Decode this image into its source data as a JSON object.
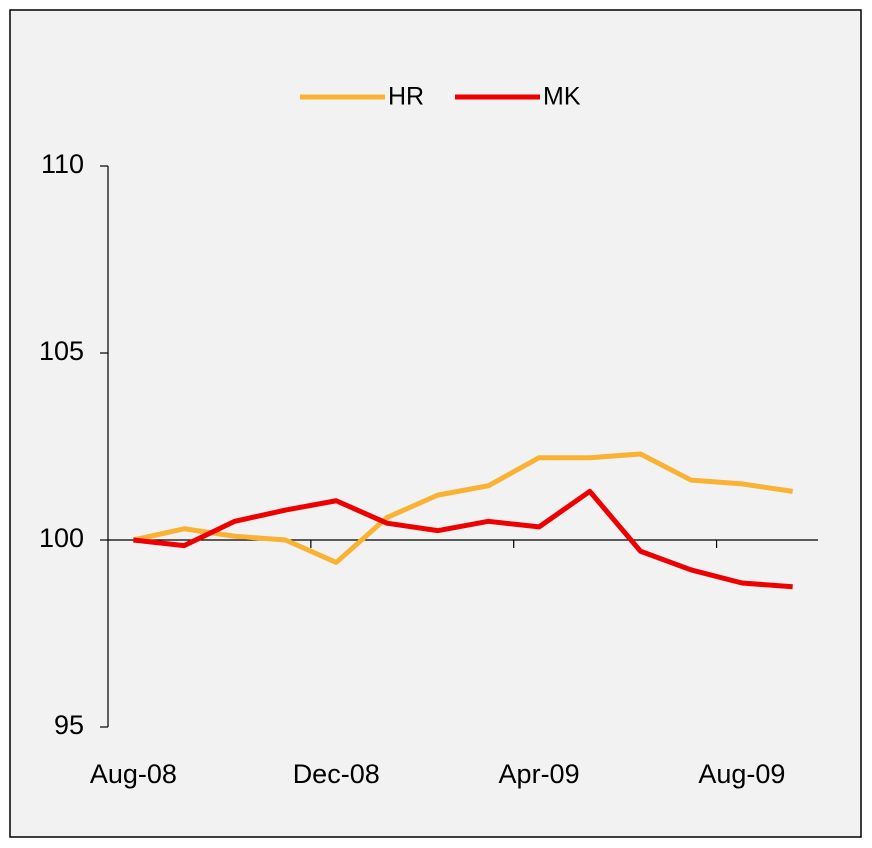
{
  "chart_data": {
    "type": "line",
    "categories": [
      "Aug-08",
      null,
      null,
      null,
      "Dec-08",
      null,
      null,
      null,
      "Apr-09",
      null,
      null,
      null,
      "Aug-09",
      null
    ],
    "series": [
      {
        "name": "HR",
        "color": "#f9b234",
        "values": [
          100,
          100.3,
          100.1,
          100.0,
          99.4,
          100.6,
          101.2,
          101.45,
          102.2,
          102.2,
          102.3,
          101.6,
          101.5,
          101.3
        ]
      },
      {
        "name": "MK",
        "color": "#ee0000",
        "values": [
          100,
          99.85,
          100.5,
          100.8,
          101.05,
          100.45,
          100.25,
          100.5,
          100.35,
          101.3,
          99.7,
          99.2,
          98.85,
          98.75
        ]
      }
    ],
    "ylim": [
      95,
      110
    ],
    "yticks": [
      95,
      100,
      105,
      110
    ],
    "x_axis_crosses": 100,
    "legend": "top"
  }
}
